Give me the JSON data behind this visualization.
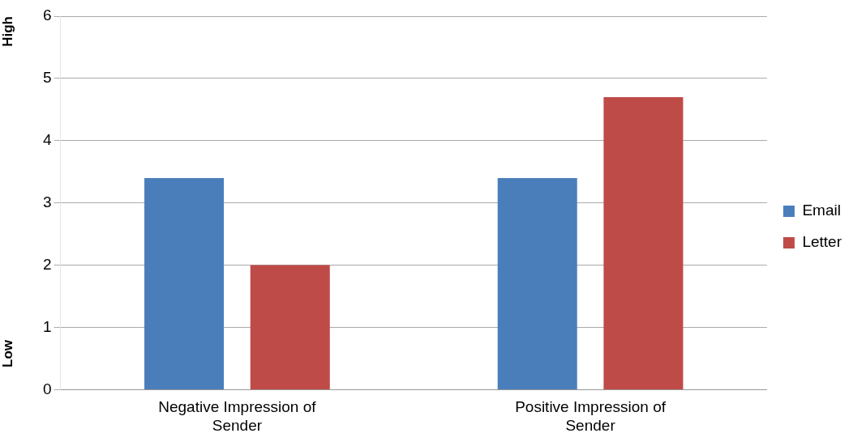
{
  "chart_data": {
    "type": "bar",
    "categories": [
      "Negative Impression of Sender",
      "Positive Impression of Sender"
    ],
    "series": [
      {
        "name": "Email",
        "color": "#4a7ebb",
        "values": [
          3.4,
          3.4
        ]
      },
      {
        "name": "Letter",
        "color": "#be4b48",
        "values": [
          2.0,
          4.7
        ]
      }
    ],
    "ylim": [
      0,
      6
    ],
    "yticks": [
      0,
      1,
      2,
      3,
      4,
      5,
      6
    ],
    "grid": "y",
    "legend": "right",
    "annotations": [
      "High",
      "Low"
    ]
  }
}
